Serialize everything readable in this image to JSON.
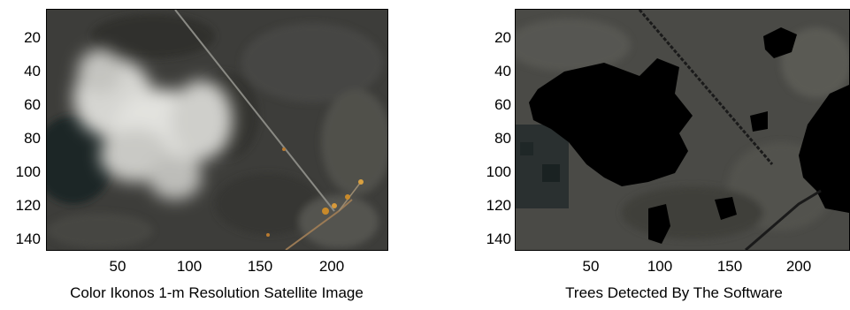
{
  "figures": [
    {
      "caption": "Color Ikonos 1-m Resolution Satellite Image",
      "y_ticks": [
        "20",
        "40",
        "60",
        "80",
        "100",
        "120",
        "140"
      ],
      "x_ticks": [
        "50",
        "100",
        "150",
        "200"
      ]
    },
    {
      "caption": "Trees Detected By The Software",
      "y_ticks": [
        "20",
        "40",
        "60",
        "80",
        "100",
        "120",
        "140"
      ],
      "x_ticks": [
        "50",
        "100",
        "150",
        "200"
      ]
    }
  ]
}
